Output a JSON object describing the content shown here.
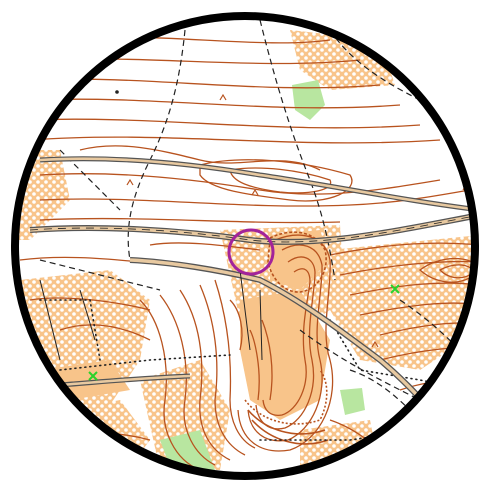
{
  "map": {
    "colors": {
      "contour": "#b8531f",
      "open_land": "#f8c48a",
      "rough_open": "#fbd9ae",
      "vegetation_green": "#b8e6a0",
      "track": "#222222",
      "control": "#a3239a",
      "frame": "#000000",
      "road_fill": "#e8c9a0",
      "special_green": "#2bd12b"
    },
    "features": {
      "control_circle": "control",
      "special_markers": [
        "green-x",
        "green-x"
      ],
      "background": "white-forest"
    }
  }
}
